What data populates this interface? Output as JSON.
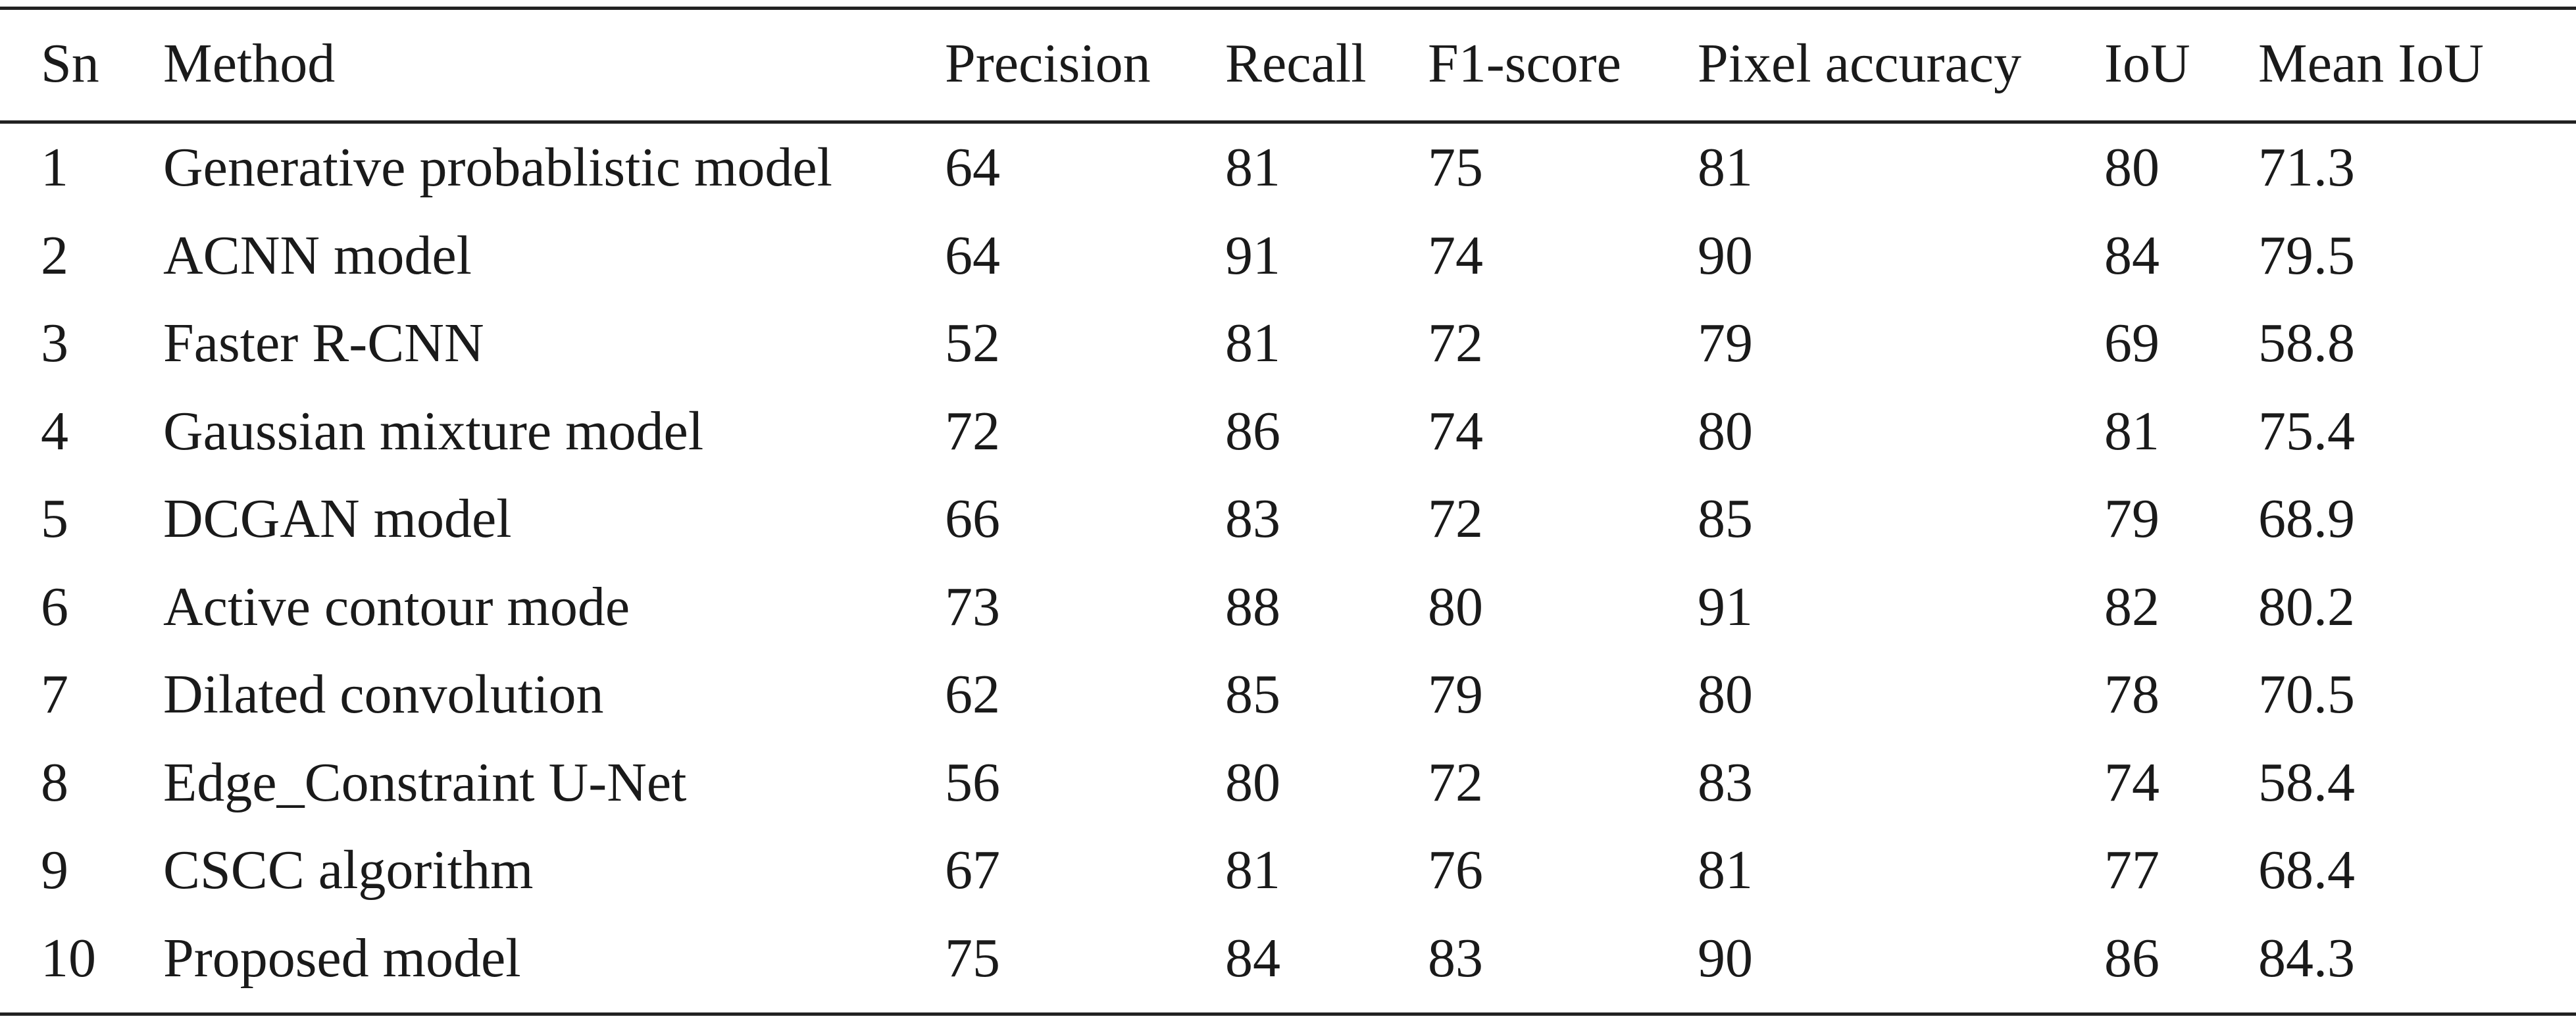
{
  "table": {
    "headers": {
      "sn": "Sn",
      "method": "Method",
      "precision": "Precision",
      "recall": "Recall",
      "f1": "F1-score",
      "pixel": "Pixel accuracy",
      "iou": "IoU",
      "miou": "Mean IoU"
    },
    "rows": [
      {
        "sn": "1",
        "method": "Generative probablistic model",
        "precision": "64",
        "recall": "81",
        "f1": "75",
        "pixel": "81",
        "iou": "80",
        "miou": "71.3"
      },
      {
        "sn": "2",
        "method": "ACNN model",
        "precision": "64",
        "recall": "91",
        "f1": "74",
        "pixel": "90",
        "iou": "84",
        "miou": "79.5"
      },
      {
        "sn": "3",
        "method": "Faster R-CNN",
        "precision": "52",
        "recall": "81",
        "f1": "72",
        "pixel": "79",
        "iou": "69",
        "miou": "58.8"
      },
      {
        "sn": "4",
        "method": "Gaussian mixture model",
        "precision": "72",
        "recall": "86",
        "f1": "74",
        "pixel": "80",
        "iou": "81",
        "miou": "75.4"
      },
      {
        "sn": "5",
        "method": "DCGAN model",
        "precision": "66",
        "recall": "83",
        "f1": "72",
        "pixel": "85",
        "iou": "79",
        "miou": "68.9"
      },
      {
        "sn": "6",
        "method": "Active contour mode",
        "precision": "73",
        "recall": "88",
        "f1": "80",
        "pixel": "91",
        "iou": "82",
        "miou": "80.2"
      },
      {
        "sn": "7",
        "method": "Dilated convolution",
        "precision": "62",
        "recall": "85",
        "f1": "79",
        "pixel": "80",
        "iou": "78",
        "miou": "70.5"
      },
      {
        "sn": "8",
        "method": "Edge_Constraint U-Net",
        "precision": "56",
        "recall": "80",
        "f1": "72",
        "pixel": "83",
        "iou": "74",
        "miou": "58.4"
      },
      {
        "sn": "9",
        "method": "CSCC algorithm",
        "precision": "67",
        "recall": "81",
        "f1": "76",
        "pixel": "81",
        "iou": "77",
        "miou": "68.4"
      },
      {
        "sn": "10",
        "method": "Proposed model",
        "precision": "75",
        "recall": "84",
        "f1": "83",
        "pixel": "90",
        "iou": "86",
        "miou": "84.3"
      }
    ]
  }
}
